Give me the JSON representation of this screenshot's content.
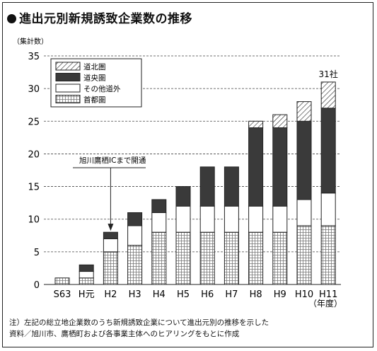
{
  "title": "進出元別新規誘致企業数の推移",
  "notes": [
    "注）左記の総立地企業数のうち新規誘致企業について進出元別の推移を示した",
    "資料／旭川市、鷹栖町および各事業主体へのヒアリングをもとに作成"
  ],
  "chart_data": {
    "type": "bar",
    "stacked": true,
    "ylabel": "（集計数）",
    "xlabel": "（年度）",
    "ylim": [
      0,
      35
    ],
    "yticks": [
      0,
      5,
      10,
      15,
      20,
      25,
      30,
      35
    ],
    "grid": "horizontal-dashed",
    "legend_position": "top-left",
    "categories": [
      "S63",
      "H元",
      "H2",
      "H3",
      "H4",
      "H5",
      "H6",
      "H7",
      "H8",
      "H9",
      "H10",
      "H11"
    ],
    "series": [
      {
        "name": "首都圏",
        "pattern": "grid",
        "values": [
          1,
          1,
          5,
          6,
          8,
          8,
          8,
          8,
          8,
          8,
          9,
          9
        ]
      },
      {
        "name": "その他道外",
        "pattern": "white",
        "values": [
          0,
          1,
          2,
          3,
          3,
          4,
          4,
          4,
          4,
          4,
          4,
          5
        ]
      },
      {
        "name": "道央圏",
        "pattern": "dark",
        "values": [
          0,
          1,
          1,
          2,
          2,
          3,
          6,
          6,
          12,
          12,
          12,
          13
        ]
      },
      {
        "name": "道北圏",
        "pattern": "hatch",
        "values": [
          0,
          0,
          0,
          0,
          0,
          0,
          0,
          0,
          1,
          2,
          3,
          4
        ]
      }
    ],
    "annotations": [
      {
        "text": "旭川鷹栖ICまで開通",
        "category": "H2"
      },
      {
        "text": "31社",
        "category": "H11"
      }
    ]
  }
}
